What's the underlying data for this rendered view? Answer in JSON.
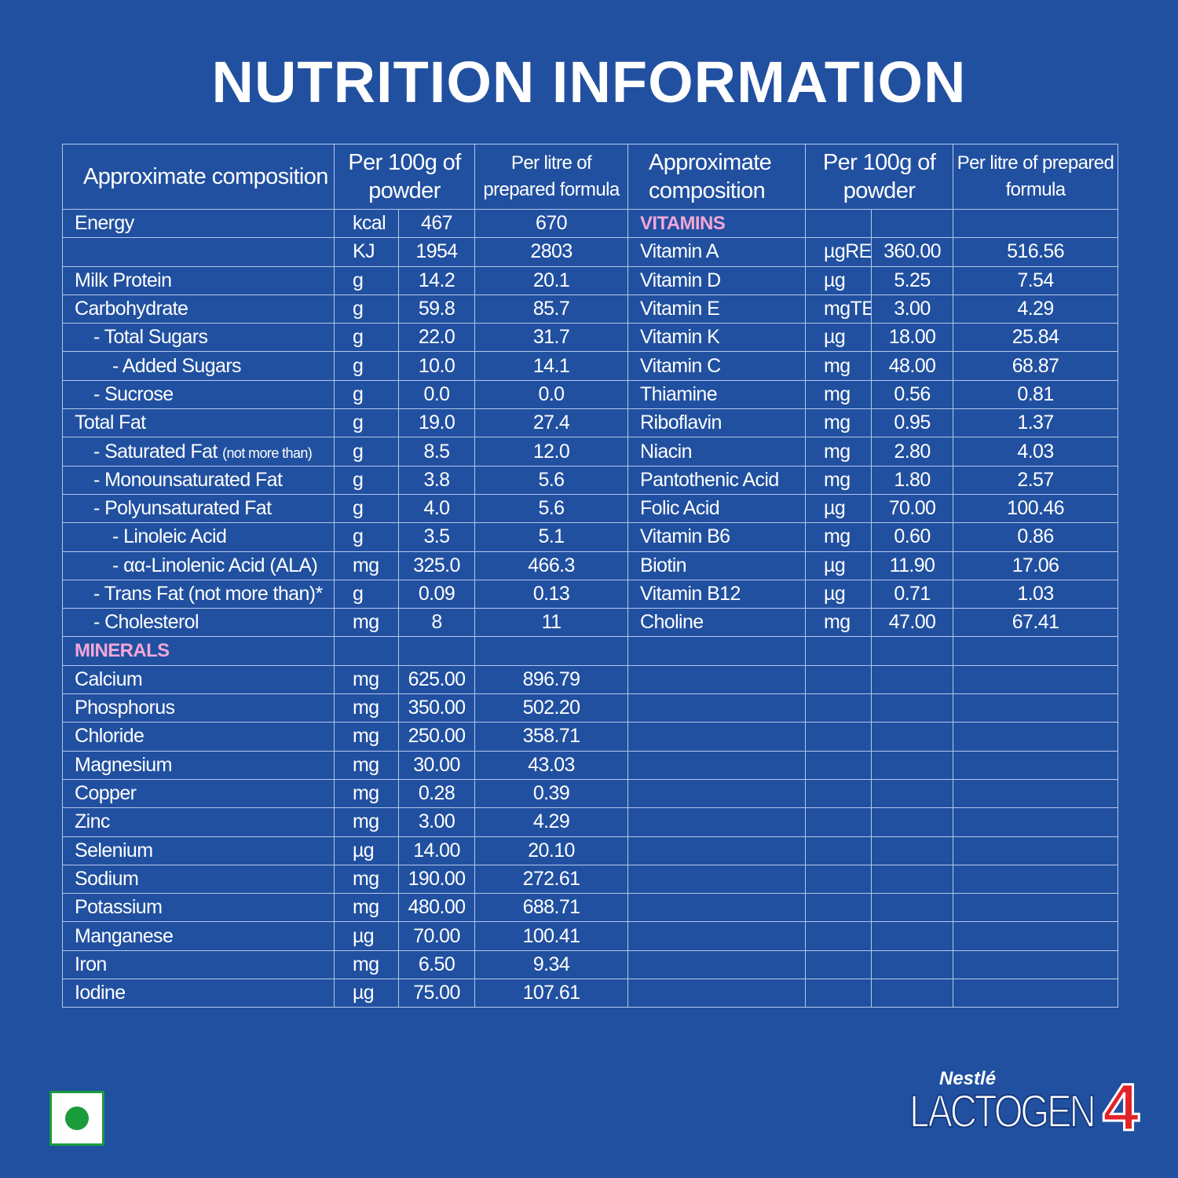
{
  "title": "NUTRITION INFORMATION",
  "header": {
    "left": [
      "Approximate composition",
      "Per 100g of powder",
      "Per litre of prepared formula"
    ],
    "right": [
      "Approximate composition",
      "Per 100g of powder",
      "Per litre of prepared formula"
    ]
  },
  "left_rows": [
    {
      "label": "Energy",
      "level": 0,
      "unit": "kcal",
      "per_100g": "467",
      "per_litre": "670"
    },
    {
      "level": 0,
      "unit": "KJ",
      "per_100g": "1954",
      "per_litre": "2803"
    },
    {
      "label": "Milk Protein",
      "level": 0,
      "unit": "g",
      "per_100g": "14.2",
      "per_litre": "20.1"
    },
    {
      "label": "Carbohydrate",
      "level": 0,
      "unit": "g",
      "per_100g": "59.8",
      "per_litre": "85.7"
    },
    {
      "label": "- Total Sugars",
      "level": 1,
      "unit": "g",
      "per_100g": "22.0",
      "per_litre": "31.7"
    },
    {
      "label": "- Added Sugars",
      "level": 2,
      "unit": "g",
      "per_100g": "10.0",
      "per_litre": "14.1"
    },
    {
      "label": "- Sucrose",
      "level": 1,
      "unit": "g",
      "per_100g": "0.0",
      "per_litre": "0.0"
    },
    {
      "label": "Total Fat",
      "level": 0,
      "unit": "g",
      "per_100g": "19.0",
      "per_litre": "27.4"
    },
    {
      "label": "- Saturated Fat",
      "note": "(not more than)",
      "level": 1,
      "unit": "g",
      "per_100g": "8.5",
      "per_litre": "12.0"
    },
    {
      "label": "- Monounsaturated Fat",
      "level": 1,
      "unit": "g",
      "per_100g": "3.8",
      "per_litre": "5.6"
    },
    {
      "label": "- Polyunsaturated Fat",
      "level": 1,
      "unit": "g",
      "per_100g": "4.0",
      "per_litre": "5.6"
    },
    {
      "label": "- Linoleic Acid",
      "level": 2,
      "unit": "g",
      "per_100g": "3.5",
      "per_litre": "5.1"
    },
    {
      "label": "- αα-Linolenic Acid (ALA)",
      "level": 2,
      "unit": "mg",
      "per_100g": "325.0",
      "per_litre": "466.3"
    },
    {
      "label": "- Trans Fat (not more than)*",
      "level": 1,
      "unit": "g",
      "per_100g": "0.09",
      "per_litre": "0.13"
    },
    {
      "label": "- Cholesterol",
      "level": 1,
      "unit": "mg",
      "per_100g": "8",
      "per_litre": "11"
    },
    {
      "section": "MINERALS"
    },
    {
      "label": "Calcium",
      "level": 0,
      "unit": "mg",
      "per_100g": "625.00",
      "per_litre": "896.79"
    },
    {
      "label": "Phosphorus",
      "level": 0,
      "unit": "mg",
      "per_100g": "350.00",
      "per_litre": "502.20"
    },
    {
      "label": "Chloride",
      "level": 0,
      "unit": "mg",
      "per_100g": "250.00",
      "per_litre": "358.71"
    },
    {
      "label": "Magnesium",
      "level": 0,
      "unit": "mg",
      "per_100g": "30.00",
      "per_litre": "43.03"
    },
    {
      "label": "Copper",
      "level": 0,
      "unit": "mg",
      "per_100g": "0.28",
      "per_litre": "0.39"
    },
    {
      "label": "Zinc",
      "level": 0,
      "unit": "mg",
      "per_100g": "3.00",
      "per_litre": "4.29"
    },
    {
      "label": "Selenium",
      "level": 0,
      "unit": "µg",
      "per_100g": "14.00",
      "per_litre": "20.10"
    },
    {
      "label": "Sodium",
      "level": 0,
      "unit": "mg",
      "per_100g": "190.00",
      "per_litre": "272.61"
    },
    {
      "label": "Potassium",
      "level": 0,
      "unit": "mg",
      "per_100g": "480.00",
      "per_litre": "688.71"
    },
    {
      "label": "Manganese",
      "level": 0,
      "unit": "µg",
      "per_100g": "70.00",
      "per_litre": "100.41"
    },
    {
      "label": "Iron",
      "level": 0,
      "unit": "mg",
      "per_100g": "6.50",
      "per_litre": "9.34"
    },
    {
      "label": "Iodine",
      "level": 0,
      "unit": "µg",
      "per_100g": "75.00",
      "per_litre": "107.61"
    }
  ],
  "right_rows": [
    {
      "section": "VITAMINS"
    },
    {
      "label": "Vitamin A",
      "level": 0,
      "unit": "µgRE",
      "per_100g": "360.00",
      "per_litre": "516.56"
    },
    {
      "label": "Vitamin D",
      "level": 0,
      "unit": "µg",
      "per_100g": "5.25",
      "per_litre": "7.54"
    },
    {
      "label": "Vitamin E",
      "level": 0,
      "unit": "mgTE",
      "per_100g": "3.00",
      "per_litre": "4.29"
    },
    {
      "label": "Vitamin K",
      "level": 0,
      "unit": "µg",
      "per_100g": "18.00",
      "per_litre": "25.84"
    },
    {
      "label": "Vitamin C",
      "level": 0,
      "unit": "mg",
      "per_100g": "48.00",
      "per_litre": "68.87"
    },
    {
      "label": "Thiamine",
      "level": 0,
      "unit": "mg",
      "per_100g": "0.56",
      "per_litre": "0.81"
    },
    {
      "label": "Riboflavin",
      "level": 0,
      "unit": "mg",
      "per_100g": "0.95",
      "per_litre": "1.37"
    },
    {
      "label": "Niacin",
      "level": 0,
      "unit": "mg",
      "per_100g": "2.80",
      "per_litre": "4.03"
    },
    {
      "label": "Pantothenic Acid",
      "level": 0,
      "unit": "mg",
      "per_100g": "1.80",
      "per_litre": "2.57"
    },
    {
      "label": "Folic Acid",
      "level": 0,
      "unit": "µg",
      "per_100g": "70.00",
      "per_litre": "100.46"
    },
    {
      "label": "Vitamin B6",
      "level": 0,
      "unit": "mg",
      "per_100g": "0.60",
      "per_litre": "0.86"
    },
    {
      "label": "Biotin",
      "level": 0,
      "unit": "µg",
      "per_100g": "11.90",
      "per_litre": "17.06"
    },
    {
      "label": "Vitamin B12",
      "level": 0,
      "unit": "µg",
      "per_100g": "0.71",
      "per_litre": "1.03"
    },
    {
      "label": "Choline",
      "level": 0,
      "unit": "mg",
      "per_100g": "47.00",
      "per_litre": "67.41"
    }
  ],
  "brand": {
    "maker": "Nestlé",
    "product": "LACTOGEN",
    "stage": "4"
  }
}
